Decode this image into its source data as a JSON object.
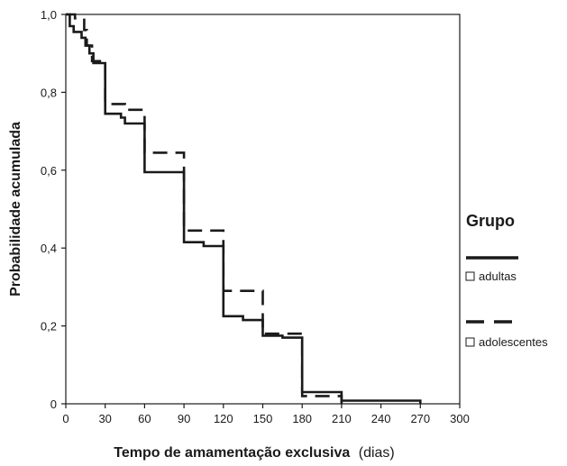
{
  "chart_data": {
    "type": "line",
    "xlabel": "Tempo de amamentação exclusiva",
    "xlabel_unit": "(dias)",
    "ylabel": "Probabilidade  acumulada",
    "xlim": [
      0,
      300
    ],
    "ylim": [
      0,
      1.0
    ],
    "x_ticks": [
      "0",
      "30",
      "60",
      "90",
      "120",
      "150",
      "180",
      "210",
      "240",
      "270",
      "300"
    ],
    "y_ticks": [
      "0",
      "0,2",
      "0,4",
      "0,6",
      "0,8",
      "1,0"
    ],
    "legend": {
      "title": "Grupo",
      "placement": "right"
    },
    "series": [
      {
        "name": "adultas",
        "style": "solid",
        "color": "#1a1a1a",
        "points": [
          [
            0,
            1.0
          ],
          [
            3,
            1.0
          ],
          [
            3,
            0.97
          ],
          [
            6,
            0.97
          ],
          [
            6,
            0.955
          ],
          [
            12,
            0.955
          ],
          [
            12,
            0.94
          ],
          [
            15,
            0.94
          ],
          [
            15,
            0.92
          ],
          [
            18,
            0.92
          ],
          [
            18,
            0.9
          ],
          [
            21,
            0.9
          ],
          [
            21,
            0.875
          ],
          [
            30,
            0.875
          ],
          [
            30,
            0.745
          ],
          [
            42,
            0.745
          ],
          [
            42,
            0.735
          ],
          [
            45,
            0.735
          ],
          [
            45,
            0.72
          ],
          [
            60,
            0.72
          ],
          [
            60,
            0.595
          ],
          [
            90,
            0.595
          ],
          [
            90,
            0.415
          ],
          [
            105,
            0.415
          ],
          [
            105,
            0.405
          ],
          [
            120,
            0.405
          ],
          [
            120,
            0.225
          ],
          [
            135,
            0.225
          ],
          [
            135,
            0.215
          ],
          [
            150,
            0.215
          ],
          [
            150,
            0.175
          ],
          [
            165,
            0.175
          ],
          [
            165,
            0.17
          ],
          [
            180,
            0.17
          ],
          [
            180,
            0.03
          ],
          [
            210,
            0.03
          ],
          [
            210,
            0.008
          ],
          [
            270,
            0.008
          ],
          [
            270,
            0.0
          ]
        ]
      },
      {
        "name": "adolescentes",
        "style": "dashed",
        "color": "#1a1a1a",
        "points": [
          [
            0,
            1.0
          ],
          [
            7,
            1.0
          ],
          [
            7,
            0.99
          ],
          [
            14,
            0.99
          ],
          [
            14,
            0.96
          ],
          [
            16,
            0.96
          ],
          [
            16,
            0.92
          ],
          [
            20,
            0.92
          ],
          [
            20,
            0.88
          ],
          [
            30,
            0.88
          ],
          [
            30,
            0.77
          ],
          [
            45,
            0.77
          ],
          [
            45,
            0.755
          ],
          [
            60,
            0.755
          ],
          [
            60,
            0.645
          ],
          [
            90,
            0.645
          ],
          [
            90,
            0.445
          ],
          [
            120,
            0.445
          ],
          [
            120,
            0.29
          ],
          [
            150,
            0.29
          ],
          [
            150,
            0.18
          ],
          [
            180,
            0.18
          ],
          [
            180,
            0.02
          ],
          [
            210,
            0.02
          ],
          [
            210,
            0.0
          ]
        ]
      }
    ]
  }
}
